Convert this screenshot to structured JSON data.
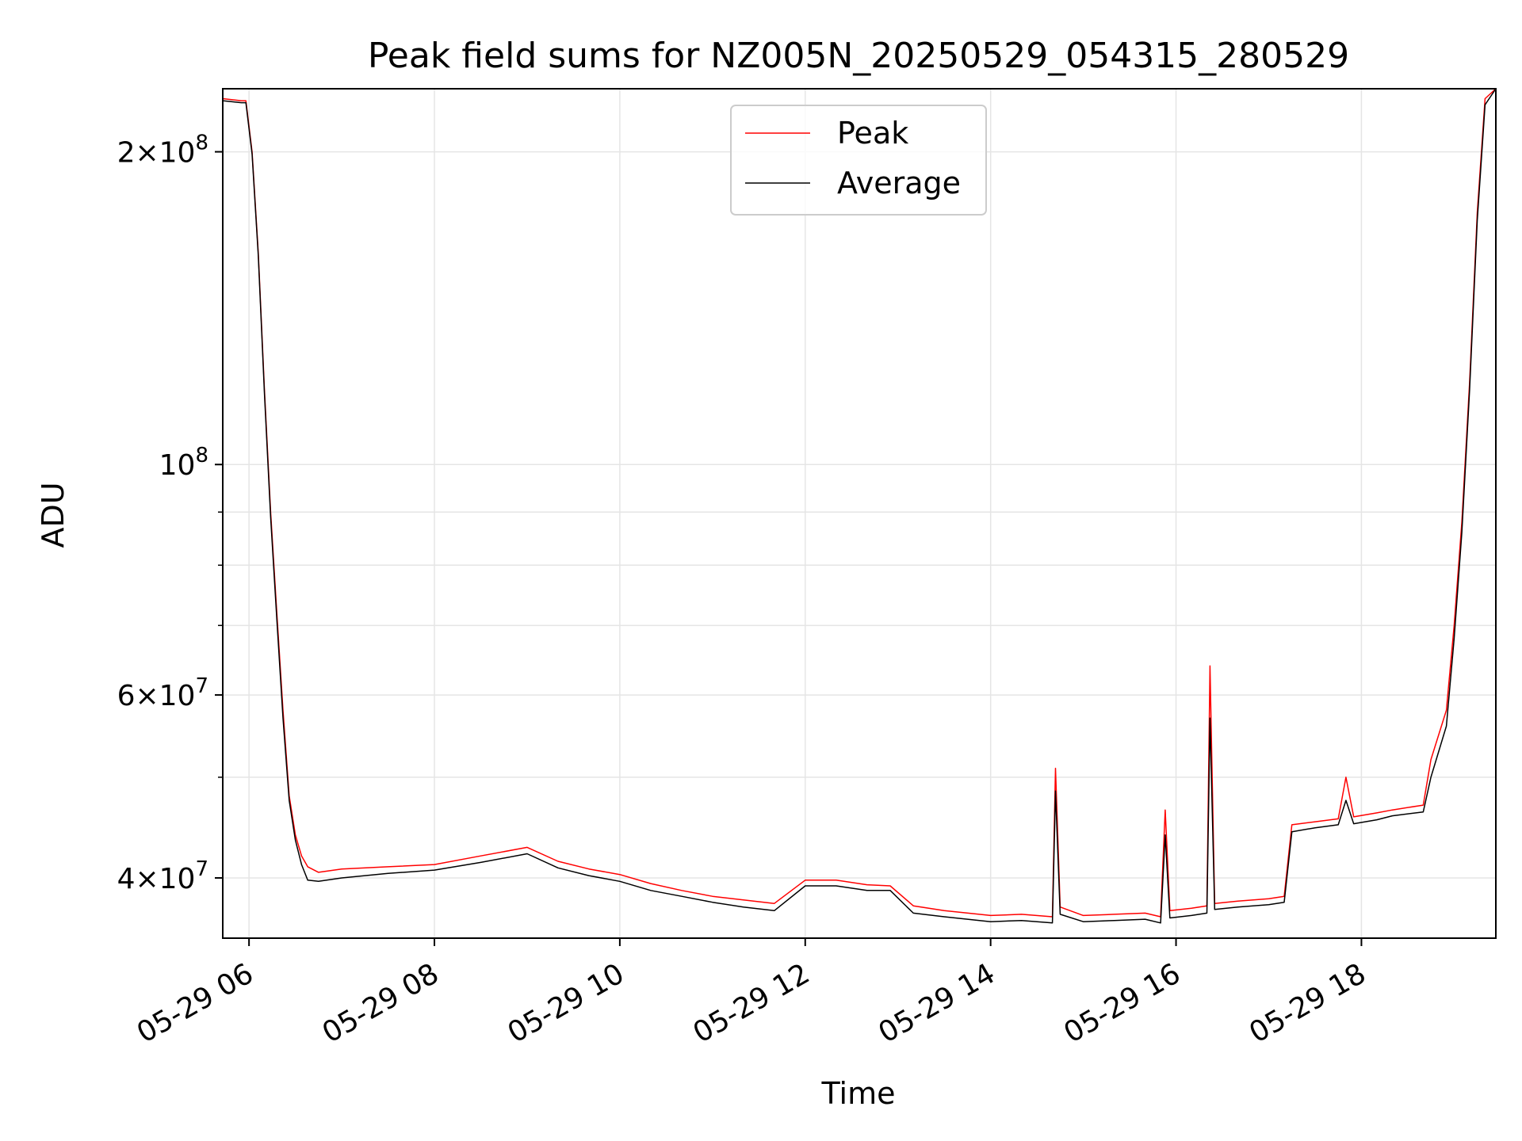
{
  "chart_data": {
    "type": "line",
    "title": "Peak field sums for NZ005N_20250529_054315_280529",
    "xlabel": "Time",
    "ylabel": "ADU",
    "y_scale": "log",
    "ylim": [
      35000000,
      230000000
    ],
    "xlim": [
      "2025-05-29 05:43",
      "2025-05-29 19:27"
    ],
    "grid": true,
    "legend_position": "upper center",
    "x_ticks": [
      {
        "value": "2025-05-29 06:00",
        "label": "05-29 06"
      },
      {
        "value": "2025-05-29 08:00",
        "label": "05-29 08"
      },
      {
        "value": "2025-05-29 10:00",
        "label": "05-29 10"
      },
      {
        "value": "2025-05-29 12:00",
        "label": "05-29 12"
      },
      {
        "value": "2025-05-29 14:00",
        "label": "05-29 14"
      },
      {
        "value": "2025-05-29 16:00",
        "label": "05-29 16"
      },
      {
        "value": "2025-05-29 18:00",
        "label": "05-29 18"
      }
    ],
    "y_ticks": [
      {
        "value": 40000000,
        "mantissa": "4",
        "exponent": "7"
      },
      {
        "value": 60000000,
        "mantissa": "6",
        "exponent": "7"
      },
      {
        "value": 100000000,
        "mantissa": "",
        "exponent": "8"
      },
      {
        "value": 200000000,
        "mantissa": "2",
        "exponent": "8"
      }
    ],
    "y_minor_ticks": [
      50000000,
      70000000,
      80000000,
      90000000
    ],
    "series": [
      {
        "name": "Peak",
        "color": "#ff0000",
        "x": [
          "05:43",
          "05:55",
          "05:58",
          "06:02",
          "06:06",
          "06:10",
          "06:14",
          "06:18",
          "06:22",
          "06:26",
          "06:30",
          "06:34",
          "06:38",
          "06:45",
          "07:00",
          "07:30",
          "08:00",
          "08:30",
          "09:00",
          "09:20",
          "09:40",
          "10:00",
          "10:20",
          "10:40",
          "11:00",
          "11:20",
          "11:40",
          "12:00",
          "12:20",
          "12:40",
          "12:55",
          "13:10",
          "13:30",
          "14:00",
          "14:20",
          "14:40",
          "14:42",
          "14:45",
          "15:00",
          "15:20",
          "15:40",
          "15:50",
          "15:53",
          "15:56",
          "16:10",
          "16:20",
          "16:22",
          "16:25",
          "16:40",
          "17:00",
          "17:10",
          "17:15",
          "17:30",
          "17:45",
          "17:50",
          "17:55",
          "18:10",
          "18:20",
          "18:40",
          "18:45",
          "18:55",
          "19:00",
          "19:05",
          "19:10",
          "19:15",
          "19:20",
          "19:27"
        ],
        "y": [
          225000000,
          224000000,
          224000000,
          200000000,
          160000000,
          118000000,
          90000000,
          72000000,
          58000000,
          48000000,
          44000000,
          42000000,
          41000000,
          40500000,
          40800000,
          41000000,
          41200000,
          42000000,
          42800000,
          41500000,
          40800000,
          40300000,
          39500000,
          38900000,
          38400000,
          38100000,
          37800000,
          39800000,
          39800000,
          39400000,
          39300000,
          37600000,
          37200000,
          36800000,
          36900000,
          36700000,
          51000000,
          37500000,
          36800000,
          36900000,
          37000000,
          36700000,
          46500000,
          37200000,
          37400000,
          37600000,
          64000000,
          37800000,
          38000000,
          38200000,
          38400000,
          45000000,
          45300000,
          45600000,
          50000000,
          45800000,
          46200000,
          46500000,
          47000000,
          52000000,
          58000000,
          70000000,
          88000000,
          120000000,
          175000000,
          225000000,
          235000000
        ]
      },
      {
        "name": "Average",
        "color": "#000000",
        "x": [
          "05:43",
          "05:55",
          "05:58",
          "06:02",
          "06:06",
          "06:10",
          "06:14",
          "06:18",
          "06:22",
          "06:26",
          "06:30",
          "06:34",
          "06:38",
          "06:45",
          "07:00",
          "07:30",
          "08:00",
          "08:30",
          "09:00",
          "09:20",
          "09:40",
          "10:00",
          "10:20",
          "10:40",
          "11:00",
          "11:20",
          "11:40",
          "12:00",
          "12:20",
          "12:40",
          "12:55",
          "13:10",
          "13:30",
          "14:00",
          "14:20",
          "14:40",
          "14:42",
          "14:45",
          "15:00",
          "15:20",
          "15:40",
          "15:50",
          "15:53",
          "15:56",
          "16:10",
          "16:20",
          "16:22",
          "16:25",
          "16:40",
          "17:00",
          "17:10",
          "17:15",
          "17:30",
          "17:45",
          "17:50",
          "17:55",
          "18:10",
          "18:20",
          "18:40",
          "18:45",
          "18:55",
          "19:00",
          "19:05",
          "19:10",
          "19:15",
          "19:20",
          "19:27"
        ],
        "y": [
          224000000,
          223000000,
          223000000,
          199000000,
          159000000,
          117000000,
          89000000,
          71000000,
          57000000,
          47500000,
          43500000,
          41200000,
          39800000,
          39700000,
          40000000,
          40400000,
          40700000,
          41400000,
          42200000,
          40900000,
          40200000,
          39700000,
          38900000,
          38400000,
          37900000,
          37500000,
          37200000,
          39300000,
          39300000,
          38900000,
          38900000,
          37000000,
          36700000,
          36300000,
          36400000,
          36200000,
          48500000,
          36900000,
          36300000,
          36400000,
          36500000,
          36200000,
          44000000,
          36600000,
          36800000,
          37000000,
          57000000,
          37300000,
          37500000,
          37700000,
          37900000,
          44300000,
          44700000,
          45000000,
          47500000,
          45100000,
          45500000,
          45900000,
          46300000,
          50000000,
          56000000,
          68000000,
          86000000,
          118000000,
          172000000,
          222000000,
          232000000
        ]
      }
    ]
  }
}
